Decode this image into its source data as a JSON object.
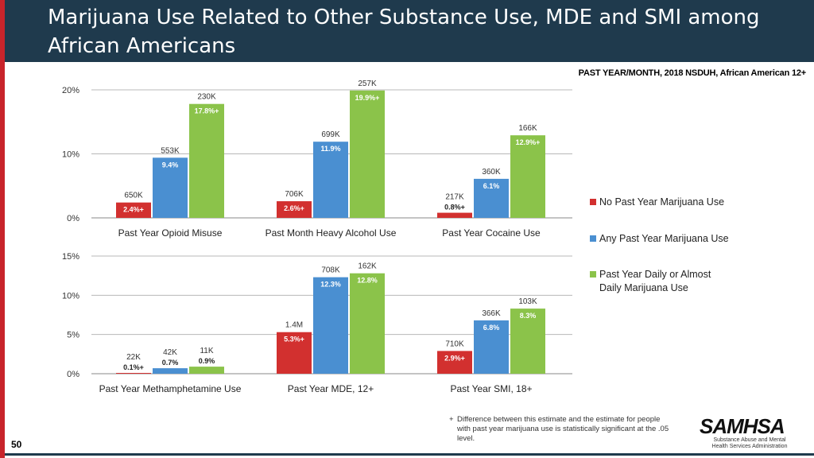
{
  "title": "Marijuana Use Related to Other Substance Use, MDE and SMI among African Americans",
  "subtitle": "PAST YEAR/MONTH, 2018 NSDUH, African American 12+",
  "legend": [
    {
      "label": "No Past Year Marijuana Use",
      "color": "#d2302f"
    },
    {
      "label": "Any Past Year Marijuana Use",
      "color": "#4a8fd1"
    },
    {
      "label": "Past Year Daily or Almost Daily Marijuana Use",
      "color": "#8bc34a"
    }
  ],
  "footnote": {
    "symbol": "+",
    "text": "Difference between this estimate and the estimate for people with past year marijuana use is statistically significant at the .05 level."
  },
  "logo": {
    "name": "SAMHSA",
    "tagline": "Substance Abuse and Mental Health Services Administration"
  },
  "page_number": "50",
  "chart_data": [
    {
      "type": "bar",
      "ylim": [
        0,
        20
      ],
      "yticks": [
        {
          "value": 0,
          "label": "0%"
        },
        {
          "value": 10,
          "label": "10%"
        },
        {
          "value": 20,
          "label": "20%"
        }
      ],
      "categories": [
        "Past Year Opioid Misuse",
        "Past Month Heavy Alcohol Use",
        "Past Year Cocaine Use"
      ],
      "series": [
        {
          "name": "No Past Year Marijuana Use",
          "values": [
            2.4,
            2.6,
            0.8
          ],
          "labels": [
            "2.4%+",
            "2.6%+",
            "0.8%+"
          ],
          "counts": [
            "650K",
            "706K",
            "217K"
          ]
        },
        {
          "name": "Any Past Year Marijuana Use",
          "values": [
            9.4,
            11.9,
            6.1
          ],
          "labels": [
            "9.4%",
            "11.9%",
            "6.1%"
          ],
          "counts": [
            "553K",
            "699K",
            "360K"
          ]
        },
        {
          "name": "Past Year Daily or Almost Daily Marijuana Use",
          "values": [
            17.8,
            19.9,
            12.9
          ],
          "labels": [
            "17.8%+",
            "19.9%+",
            "12.9%+"
          ],
          "counts": [
            "230K",
            "257K",
            "166K"
          ]
        }
      ]
    },
    {
      "type": "bar",
      "ylim": [
        0,
        15
      ],
      "yticks": [
        {
          "value": 0,
          "label": "0%"
        },
        {
          "value": 5,
          "label": "5%"
        },
        {
          "value": 10,
          "label": "10%"
        },
        {
          "value": 15,
          "label": "15%"
        }
      ],
      "categories": [
        "Past Year Methamphetamine Use",
        "Past Year MDE, 12+",
        "Past Year SMI, 18+"
      ],
      "series": [
        {
          "name": "No Past Year Marijuana Use",
          "values": [
            0.1,
            5.3,
            2.9
          ],
          "labels": [
            "0.1%+",
            "5.3%+",
            "2.9%+"
          ],
          "counts": [
            "22K",
            "1.4M",
            "710K"
          ]
        },
        {
          "name": "Any Past Year Marijuana Use",
          "values": [
            0.7,
            12.3,
            6.8
          ],
          "labels": [
            "0.7%",
            "12.3%",
            "6.8%"
          ],
          "counts": [
            "42K",
            "708K",
            "366K"
          ]
        },
        {
          "name": "Past Year Daily or Almost Daily Marijuana Use",
          "values": [
            0.9,
            12.8,
            8.3
          ],
          "labels": [
            "0.9%",
            "12.8%",
            "8.3%"
          ],
          "counts": [
            "11K",
            "162K",
            "103K"
          ]
        }
      ]
    }
  ]
}
